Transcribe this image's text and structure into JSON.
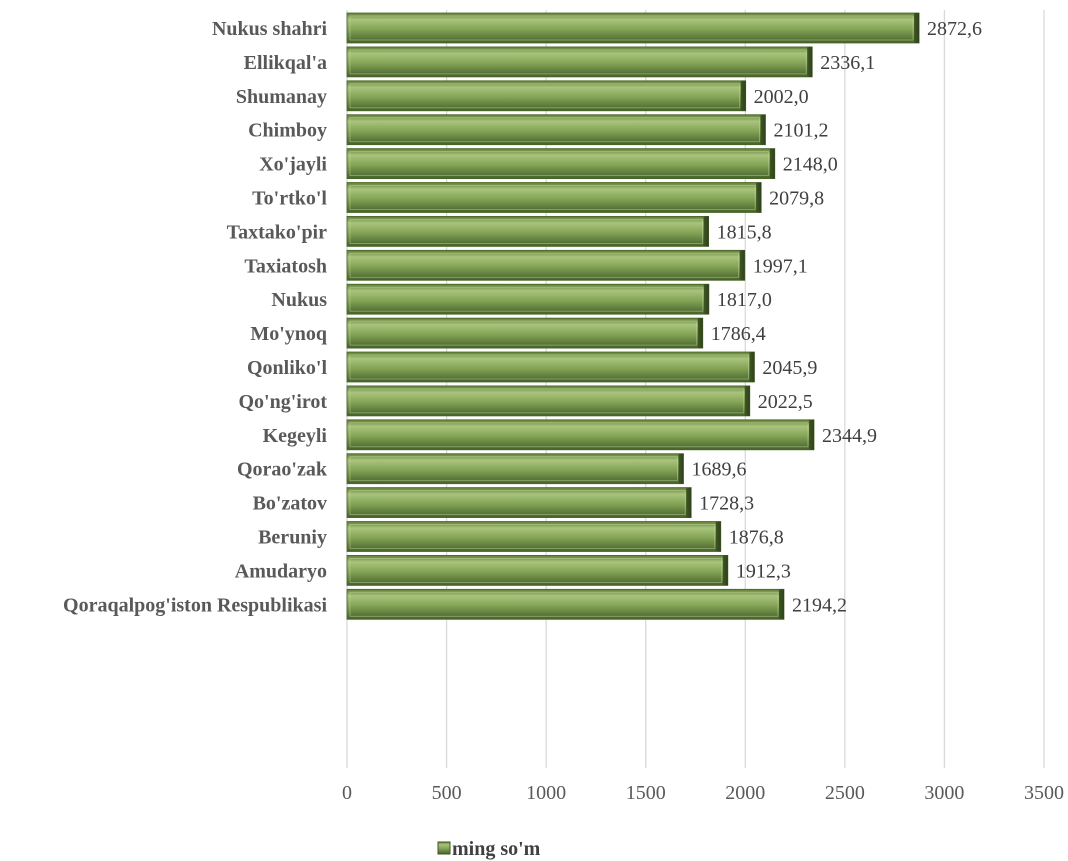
{
  "chart_data": {
    "type": "bar",
    "orientation": "horizontal",
    "categories": [
      "Nukus shahri",
      "Ellikqal'a",
      "Shumanay",
      "Chimboy",
      "Xo'jayli",
      "To'rtko'l",
      "Taxtako'pir",
      "Taxiatosh",
      "Nukus",
      "Mo'ynoq",
      "Qonliko'l",
      "Qo'ng'irot",
      "Kegeyli",
      "Qorao'zak",
      "Bo'zatov",
      "Beruniy",
      "Amudaryo",
      "Qoraqalpog'iston Respublikasi"
    ],
    "series": [
      {
        "name": "ming so'm",
        "values": [
          2872.6,
          2336.1,
          2002.0,
          2101.2,
          2148.0,
          2079.8,
          1815.8,
          1997.1,
          1817.0,
          1786.4,
          2045.9,
          2022.5,
          2344.9,
          1689.6,
          1728.3,
          1876.8,
          1912.3,
          2194.2
        ],
        "value_labels": [
          "2872,6",
          "2336,1",
          "2002,0",
          "2101,2",
          "2148,0",
          "2079,8",
          "1815,8",
          "1997,1",
          "1817,0",
          "1786,4",
          "2045,9",
          "2022,5",
          "2344,9",
          "1689,6",
          "1728,3",
          "1876,8",
          "1912,3",
          "2194,2"
        ],
        "color": "#7a9a4a"
      }
    ],
    "xlim": [
      0,
      3500
    ],
    "ticks": [
      0,
      500,
      1000,
      1500,
      2000,
      2500,
      3000,
      3500
    ],
    "tick_labels": [
      "0",
      "500",
      "1000",
      "1500",
      "2000",
      "2500",
      "3000",
      "3500"
    ],
    "grid": true,
    "legend_position": "bottom",
    "title": "",
    "xlabel": "",
    "ylabel": ""
  }
}
